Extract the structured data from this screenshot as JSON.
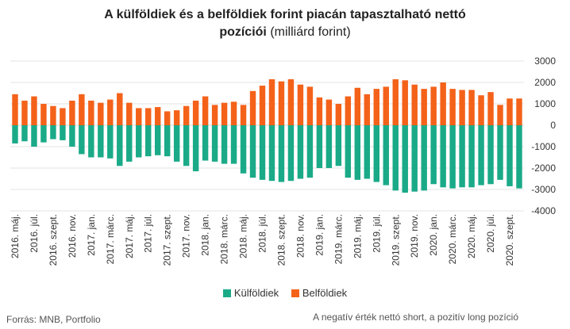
{
  "title": {
    "line1": "A külföldiek és a belföldiek forint piacán tapasztalható nettó",
    "line2_bold": "pozíciói",
    "line2_rest": " (milliárd forint)"
  },
  "legend": {
    "foreign": "Külföldiek",
    "domestic": "Belföldiek"
  },
  "source": "Forrás: MNB, Portfolio",
  "note": "A negatív érték nettó short, a pozitív long pozíció",
  "colors": {
    "foreign": "#1aaa88",
    "domestic": "#f4621a",
    "grid": "#e3e3e3",
    "zero": "#d8d8d8"
  },
  "chart_data": {
    "type": "bar",
    "stacked": true,
    "ylim": [
      -4000,
      3000
    ],
    "yticks": [
      3000,
      2000,
      1000,
      0,
      -1000,
      -2000,
      -3000,
      -4000
    ],
    "grid": true,
    "legend_position": "bottom",
    "categories": [
      "2016. máj.",
      "2016. jún.",
      "2016. júl.",
      "2016. aug.",
      "2016. szept.",
      "2016. okt.",
      "2016. nov.",
      "2016. dec.",
      "2017. jan.",
      "2017. febr.",
      "2017. márc.",
      "2017. ápr.",
      "2017. máj.",
      "2017. jún.",
      "2017. júl.",
      "2017. aug.",
      "2017. szept.",
      "2017. okt.",
      "2017. nov.",
      "2017. dec.",
      "2018. jan.",
      "2018. febr.",
      "2018. márc.",
      "2018. ápr.",
      "2018. máj.",
      "2018. jún.",
      "2018. júl.",
      "2018. aug.",
      "2018. szept.",
      "2018. okt.",
      "2018. nov.",
      "2018. dec.",
      "2019. jan.",
      "2019. febr.",
      "2019. márc.",
      "2019. ápr.",
      "2019. máj.",
      "2019. jún.",
      "2019. júl.",
      "2019. aug.",
      "2019. szept.",
      "2019. okt.",
      "2019. nov.",
      "2019. dec.",
      "2020. jan.",
      "2020. febr.",
      "2020. márc.",
      "2020. ápr.",
      "2020. máj.",
      "2020. jún.",
      "2020. júl.",
      "2020. aug.",
      "2020. szept.",
      "2020. okt."
    ],
    "tick_labels_shown": [
      "2016. máj.",
      "2016. júl.",
      "2016. szept.",
      "2016. nov.",
      "2017. jan.",
      "2017. márc.",
      "2017. máj.",
      "2017. júl.",
      "2017. szept.",
      "2017. nov.",
      "2018. jan.",
      "2018. márc.",
      "2018. máj.",
      "2018. júl.",
      "2018. szept.",
      "2018. nov.",
      "2019. jan.",
      "2019. márc.",
      "2019. máj.",
      "2019. júl.",
      "2019. szept.",
      "2019. nov.",
      "2020. jan.",
      "2020. márc.",
      "2020. máj.",
      "2020. júl.",
      "2020. szept."
    ],
    "series": [
      {
        "name": "Külföldiek",
        "values": [
          -850,
          -750,
          -1000,
          -800,
          -650,
          -700,
          -1000,
          -1350,
          -1500,
          -1500,
          -1550,
          -1900,
          -1700,
          -1500,
          -1450,
          -1400,
          -1450,
          -1700,
          -1900,
          -2150,
          -1650,
          -1700,
          -1800,
          -1800,
          -2250,
          -2450,
          -2550,
          -2600,
          -2650,
          -2600,
          -2500,
          -2450,
          -2000,
          -2000,
          -1900,
          -2450,
          -2550,
          -2500,
          -2650,
          -2800,
          -3050,
          -3150,
          -3100,
          -3050,
          -2750,
          -2900,
          -2950,
          -2900,
          -2900,
          -2800,
          -2750,
          -2550,
          -2850,
          -2950
        ]
      },
      {
        "name": "Belföldiek",
        "values": [
          1450,
          1150,
          1350,
          1000,
          900,
          800,
          1150,
          1450,
          1150,
          1050,
          1200,
          1500,
          1050,
          800,
          800,
          850,
          650,
          700,
          900,
          1150,
          1350,
          950,
          1050,
          1100,
          950,
          1600,
          1850,
          2150,
          2050,
          2150,
          1900,
          1800,
          1300,
          1200,
          1000,
          1350,
          1750,
          1450,
          1700,
          1800,
          2150,
          2100,
          1900,
          1700,
          1800,
          2000,
          1700,
          1650,
          1650,
          1400,
          1550,
          950,
          1250,
          1250
        ]
      }
    ]
  }
}
